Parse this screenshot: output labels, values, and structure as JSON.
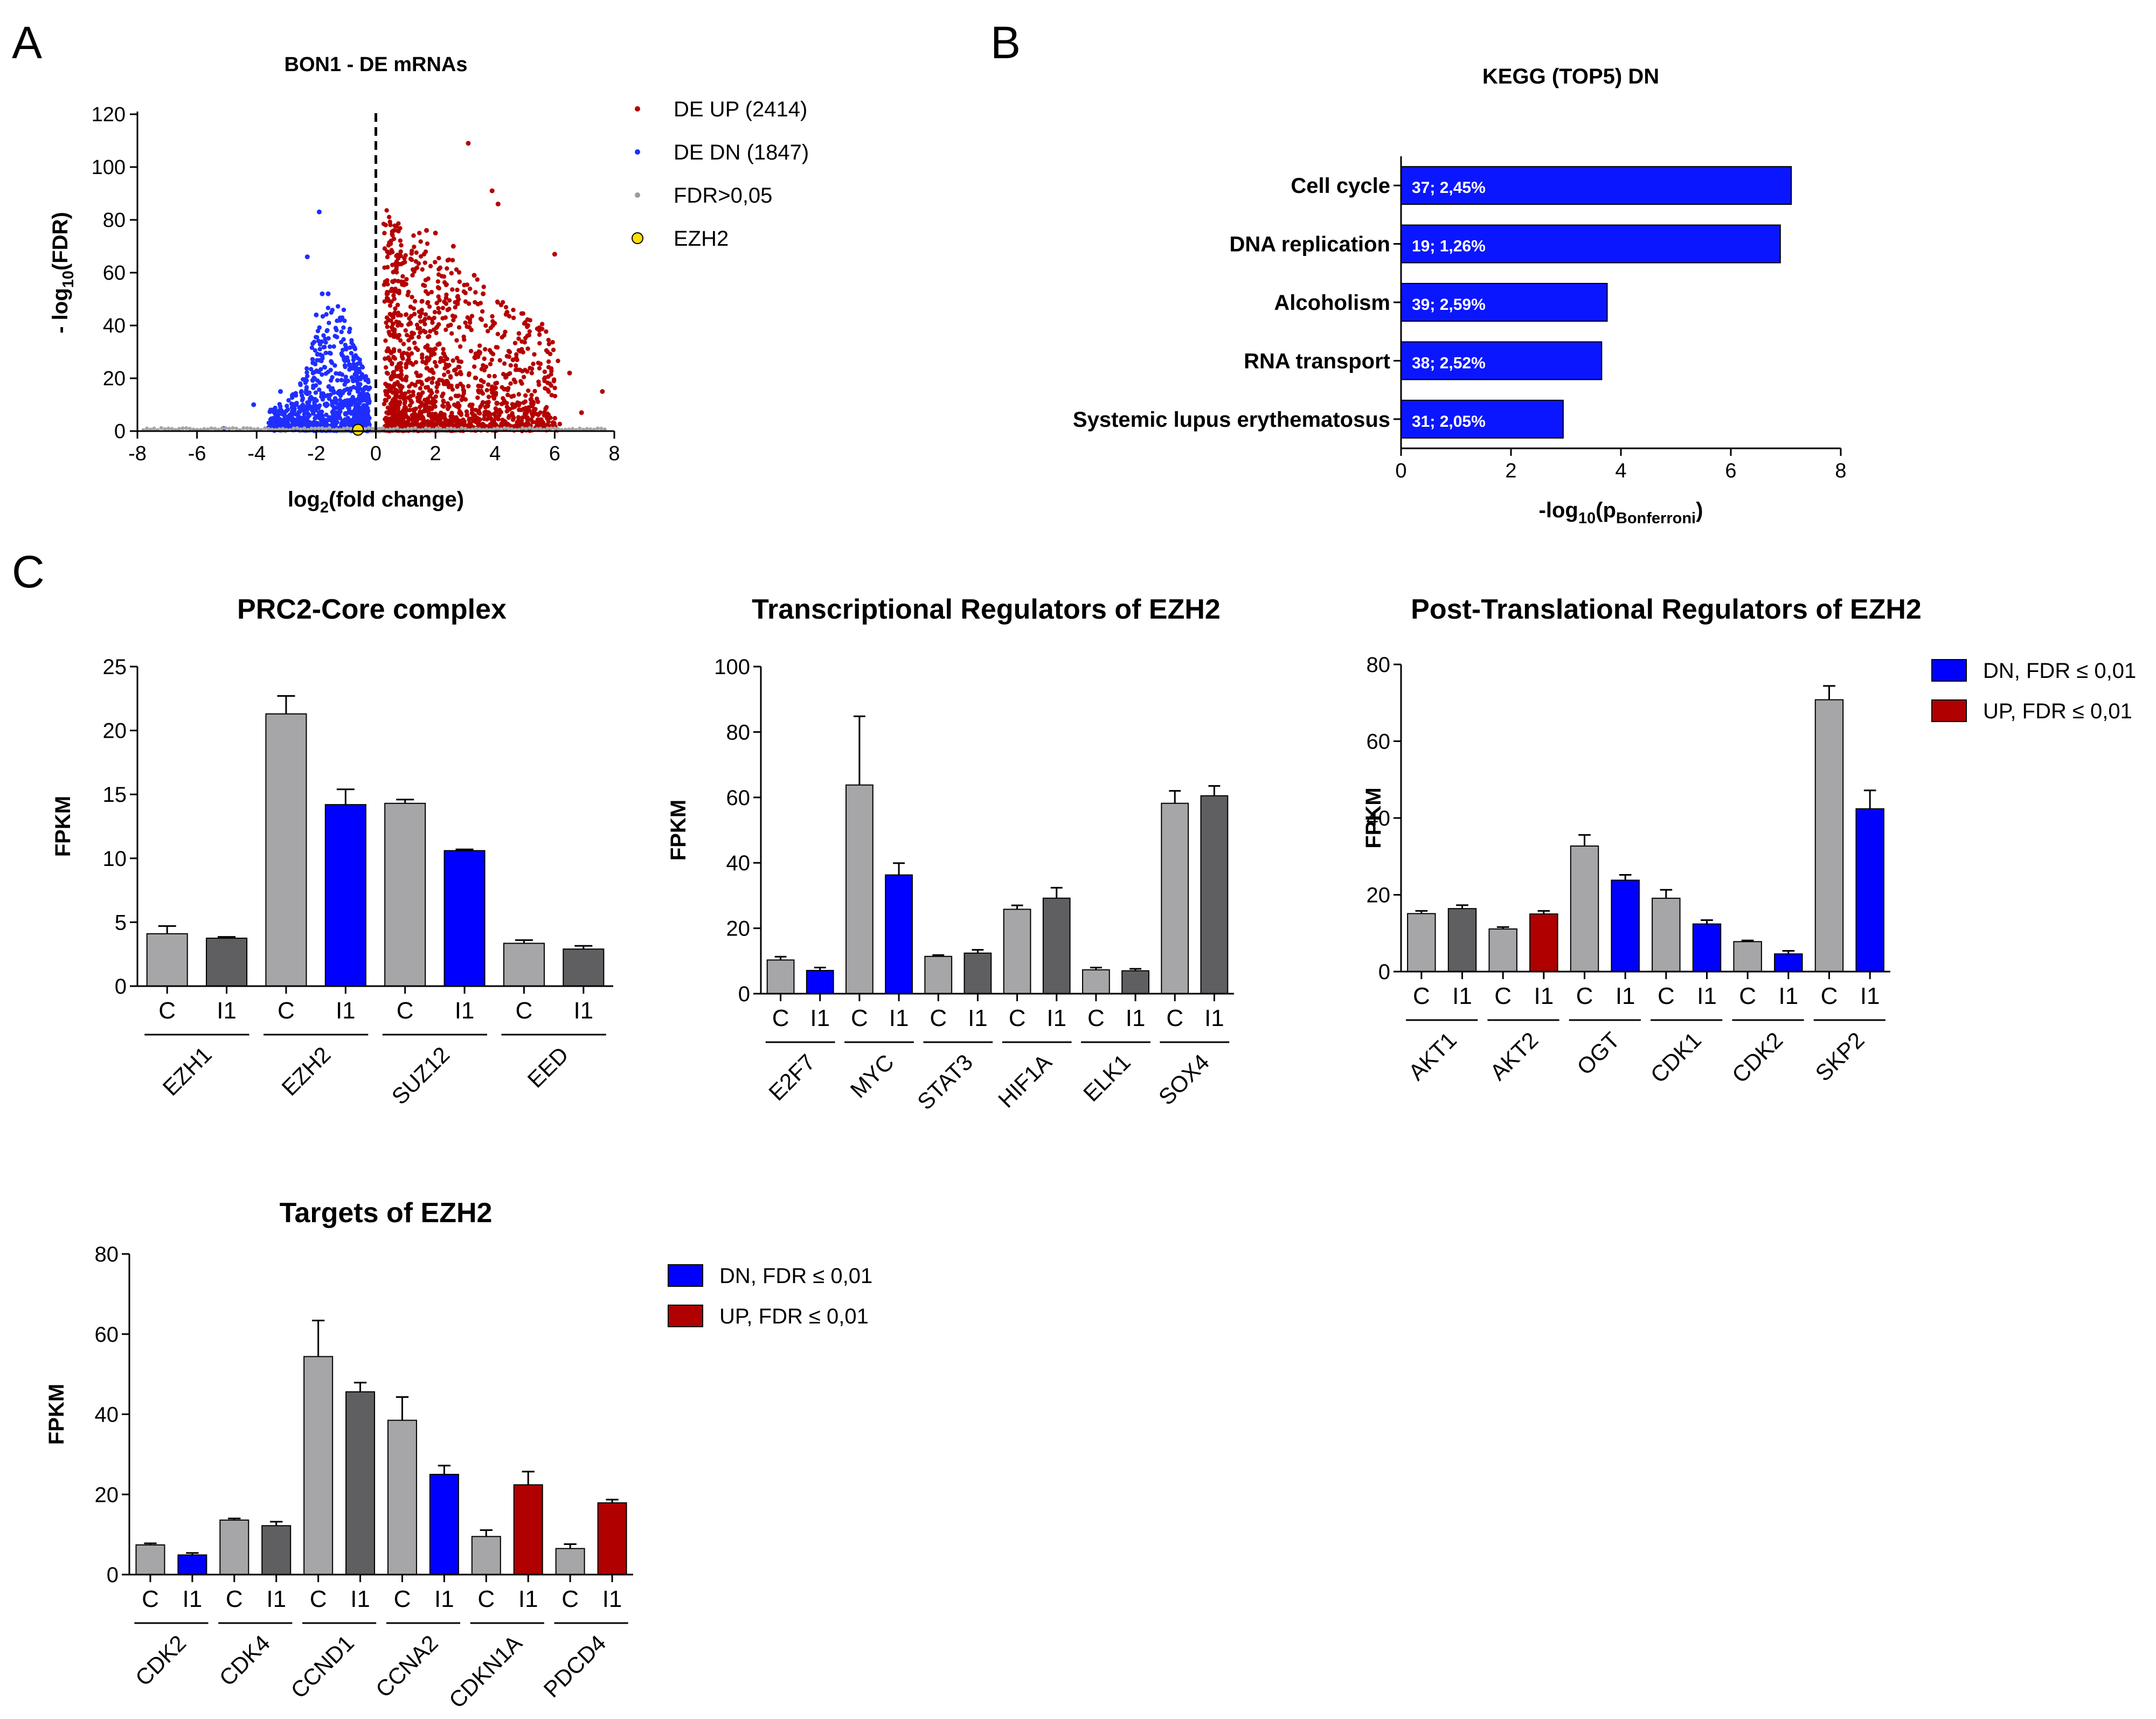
{
  "panel_letters": [
    "A",
    "B",
    "C"
  ],
  "legends": {
    "volcano": [
      {
        "label": "DE UP (2414)",
        "color": "#b40000",
        "marker": "dot"
      },
      {
        "label": "DE DN (1847)",
        "color": "#1f2eff",
        "marker": "dot"
      },
      {
        "label": "FDR>0,05",
        "color": "#9a9a9a",
        "marker": "dot"
      },
      {
        "label": "EZH2",
        "color": "#ffe000",
        "marker": "ring"
      }
    ],
    "fdr": [
      {
        "label": "DN, FDR ≤ 0,01",
        "color": "#0000ff"
      },
      {
        "label": "UP, FDR ≤ 0,01",
        "color": "#b00000"
      }
    ]
  },
  "colors": {
    "control": "#a6a6a8",
    "treated_ns": "#5f5f61",
    "dn": "#0000ff",
    "up": "#b00000",
    "kegg_bar": "#0a16ff"
  },
  "chart_data": [
    {
      "id": "volcano",
      "type": "scatter",
      "title": "BON1 - DE mRNAs",
      "xlabel": "log2(fold change)",
      "ylabel": "- log10(FDR)",
      "xlim": [
        -8,
        8
      ],
      "ylim": [
        0,
        120
      ],
      "xticks": [
        -8,
        -6,
        -4,
        -2,
        0,
        2,
        4,
        6,
        8
      ],
      "yticks": [
        0,
        20,
        40,
        60,
        80,
        100,
        120
      ],
      "threshold_line_x": 0,
      "series": [
        {
          "name": "DE UP (2414)",
          "count": 2414,
          "highlight_points": [
            [
              3.1,
              109
            ],
            [
              3.9,
              91
            ],
            [
              4.1,
              86
            ],
            [
              6.0,
              67
            ],
            [
              1.7,
              76
            ],
            [
              2.0,
              75
            ],
            [
              2.6,
              70
            ],
            [
              3.3,
              59
            ],
            [
              3.6,
              52
            ],
            [
              4.4,
              45
            ],
            [
              5.1,
              40
            ],
            [
              6.5,
              22
            ],
            [
              7.6,
              15
            ],
            [
              6.9,
              7
            ],
            [
              5.2,
              12
            ],
            [
              4.6,
              27
            ],
            [
              2.3,
              49
            ]
          ]
        },
        {
          "name": "DE DN (1847)",
          "count": 1847,
          "highlight_points": [
            [
              -1.9,
              83
            ],
            [
              -2.3,
              66
            ],
            [
              -1.8,
              52
            ],
            [
              -1.6,
              52
            ],
            [
              -2.0,
              44
            ],
            [
              -1.2,
              42
            ],
            [
              -3.2,
              15
            ],
            [
              -4.1,
              10
            ],
            [
              -5.1,
              1
            ]
          ]
        },
        {
          "name": "FDR>0,05"
        },
        {
          "name": "EZH2",
          "points": [
            [
              -0.6,
              0.5
            ]
          ]
        }
      ]
    },
    {
      "id": "kegg",
      "type": "bar",
      "orientation": "horizontal",
      "title": "KEGG (TOP5) DN",
      "xlabel": "-log10(pBonferroni)",
      "xlim": [
        0,
        8
      ],
      "xticks": [
        0,
        2,
        4,
        6,
        8
      ],
      "categories": [
        "Cell cycle",
        "DNA replication",
        "Alcoholism",
        "RNA transport",
        "Systemic lupus erythematosus"
      ],
      "values": [
        7.1,
        6.9,
        3.75,
        3.65,
        2.95
      ],
      "bar_labels": [
        "37; 2,45%",
        "19; 1,26%",
        "39; 2,59%",
        "38; 2,52%",
        "31; 2,05%"
      ]
    },
    {
      "id": "prc2",
      "type": "bar",
      "title": "PRC2-Core complex",
      "ylabel": "FPKM",
      "ylim": [
        0,
        25
      ],
      "yticks": [
        0,
        5,
        10,
        15,
        20,
        25
      ],
      "conditions": [
        "C",
        "I1"
      ],
      "genes": [
        {
          "name": "EZH1",
          "values": [
            4.1,
            3.75
          ],
          "errors": [
            0.6,
            0.1
          ],
          "status": "ns"
        },
        {
          "name": "EZH2",
          "values": [
            21.3,
            14.2
          ],
          "errors": [
            1.4,
            1.2
          ],
          "status": "dn"
        },
        {
          "name": "SUZ12",
          "values": [
            14.3,
            10.6
          ],
          "errors": [
            0.3,
            0.1
          ],
          "status": "dn"
        },
        {
          "name": "EED",
          "values": [
            3.35,
            2.9
          ],
          "errors": [
            0.25,
            0.25
          ],
          "status": "ns"
        }
      ]
    },
    {
      "id": "transcriptional",
      "type": "bar",
      "title": "Transcriptional Regulators of EZH2",
      "ylabel": "FPKM",
      "ylim": [
        0,
        100
      ],
      "yticks": [
        0,
        20,
        40,
        60,
        80,
        100
      ],
      "conditions": [
        "C",
        "I1"
      ],
      "genes": [
        {
          "name": "E2F7",
          "values": [
            10.3,
            7.1
          ],
          "errors": [
            1.0,
            0.9
          ],
          "status": "dn"
        },
        {
          "name": "MYC",
          "values": [
            63.8,
            36.3
          ],
          "errors": [
            21.0,
            3.6
          ],
          "status": "dn"
        },
        {
          "name": "STAT3",
          "values": [
            11.4,
            12.4
          ],
          "errors": [
            0.4,
            1.0
          ],
          "status": "ns"
        },
        {
          "name": "HIF1A",
          "values": [
            25.8,
            29.2
          ],
          "errors": [
            1.2,
            3.2
          ],
          "status": "ns"
        },
        {
          "name": "ELK1",
          "values": [
            7.3,
            7.0
          ],
          "errors": [
            0.7,
            0.6
          ],
          "status": "ns"
        },
        {
          "name": "SOX4",
          "values": [
            58.2,
            60.5
          ],
          "errors": [
            3.8,
            3.0
          ],
          "status": "ns"
        }
      ]
    },
    {
      "id": "posttranslational",
      "type": "bar",
      "title": "Post-Translational Regulators of EZH2",
      "ylabel": "FPKM",
      "ylim": [
        0,
        80
      ],
      "yticks": [
        0,
        20,
        40,
        60,
        80
      ],
      "conditions": [
        "C",
        "I1"
      ],
      "genes": [
        {
          "name": "AKT1",
          "values": [
            15.1,
            16.4
          ],
          "errors": [
            0.7,
            0.9
          ],
          "status": "ns"
        },
        {
          "name": "AKT2",
          "values": [
            11.1,
            15.0
          ],
          "errors": [
            0.5,
            0.8
          ],
          "status": "up"
        },
        {
          "name": "OGT",
          "values": [
            32.7,
            23.8
          ],
          "errors": [
            2.9,
            1.4
          ],
          "status": "dn"
        },
        {
          "name": "CDK1",
          "values": [
            19.1,
            12.4
          ],
          "errors": [
            2.2,
            1.0
          ],
          "status": "dn"
        },
        {
          "name": "CDK2",
          "values": [
            7.8,
            4.6
          ],
          "errors": [
            0.3,
            0.8
          ],
          "status": "dn"
        },
        {
          "name": "SKP2",
          "values": [
            70.8,
            42.4
          ],
          "errors": [
            3.6,
            4.8
          ],
          "status": "dn"
        }
      ]
    },
    {
      "id": "targets",
      "type": "bar",
      "title": "Targets of EZH2",
      "ylabel": "FPKM",
      "ylim": [
        0,
        80
      ],
      "yticks": [
        0,
        20,
        40,
        60,
        80
      ],
      "conditions": [
        "C",
        "I1"
      ],
      "genes": [
        {
          "name": "CDK2",
          "values": [
            7.4,
            4.9
          ],
          "errors": [
            0.4,
            0.5
          ],
          "status": "dn"
        },
        {
          "name": "CDK4",
          "values": [
            13.6,
            12.2
          ],
          "errors": [
            0.4,
            1.0
          ],
          "status": "ns"
        },
        {
          "name": "CCND1",
          "values": [
            54.4,
            45.6
          ],
          "errors": [
            9.0,
            2.3
          ],
          "status": "ns"
        },
        {
          "name": "CCNA2",
          "values": [
            38.5,
            25.0
          ],
          "errors": [
            5.8,
            2.2
          ],
          "status": "dn"
        },
        {
          "name": "CDKN1A",
          "values": [
            9.5,
            22.4
          ],
          "errors": [
            1.6,
            3.3
          ],
          "status": "up"
        },
        {
          "name": "PDCD4",
          "values": [
            6.5,
            17.9
          ],
          "errors": [
            1.1,
            0.8
          ],
          "status": "up"
        }
      ]
    }
  ]
}
